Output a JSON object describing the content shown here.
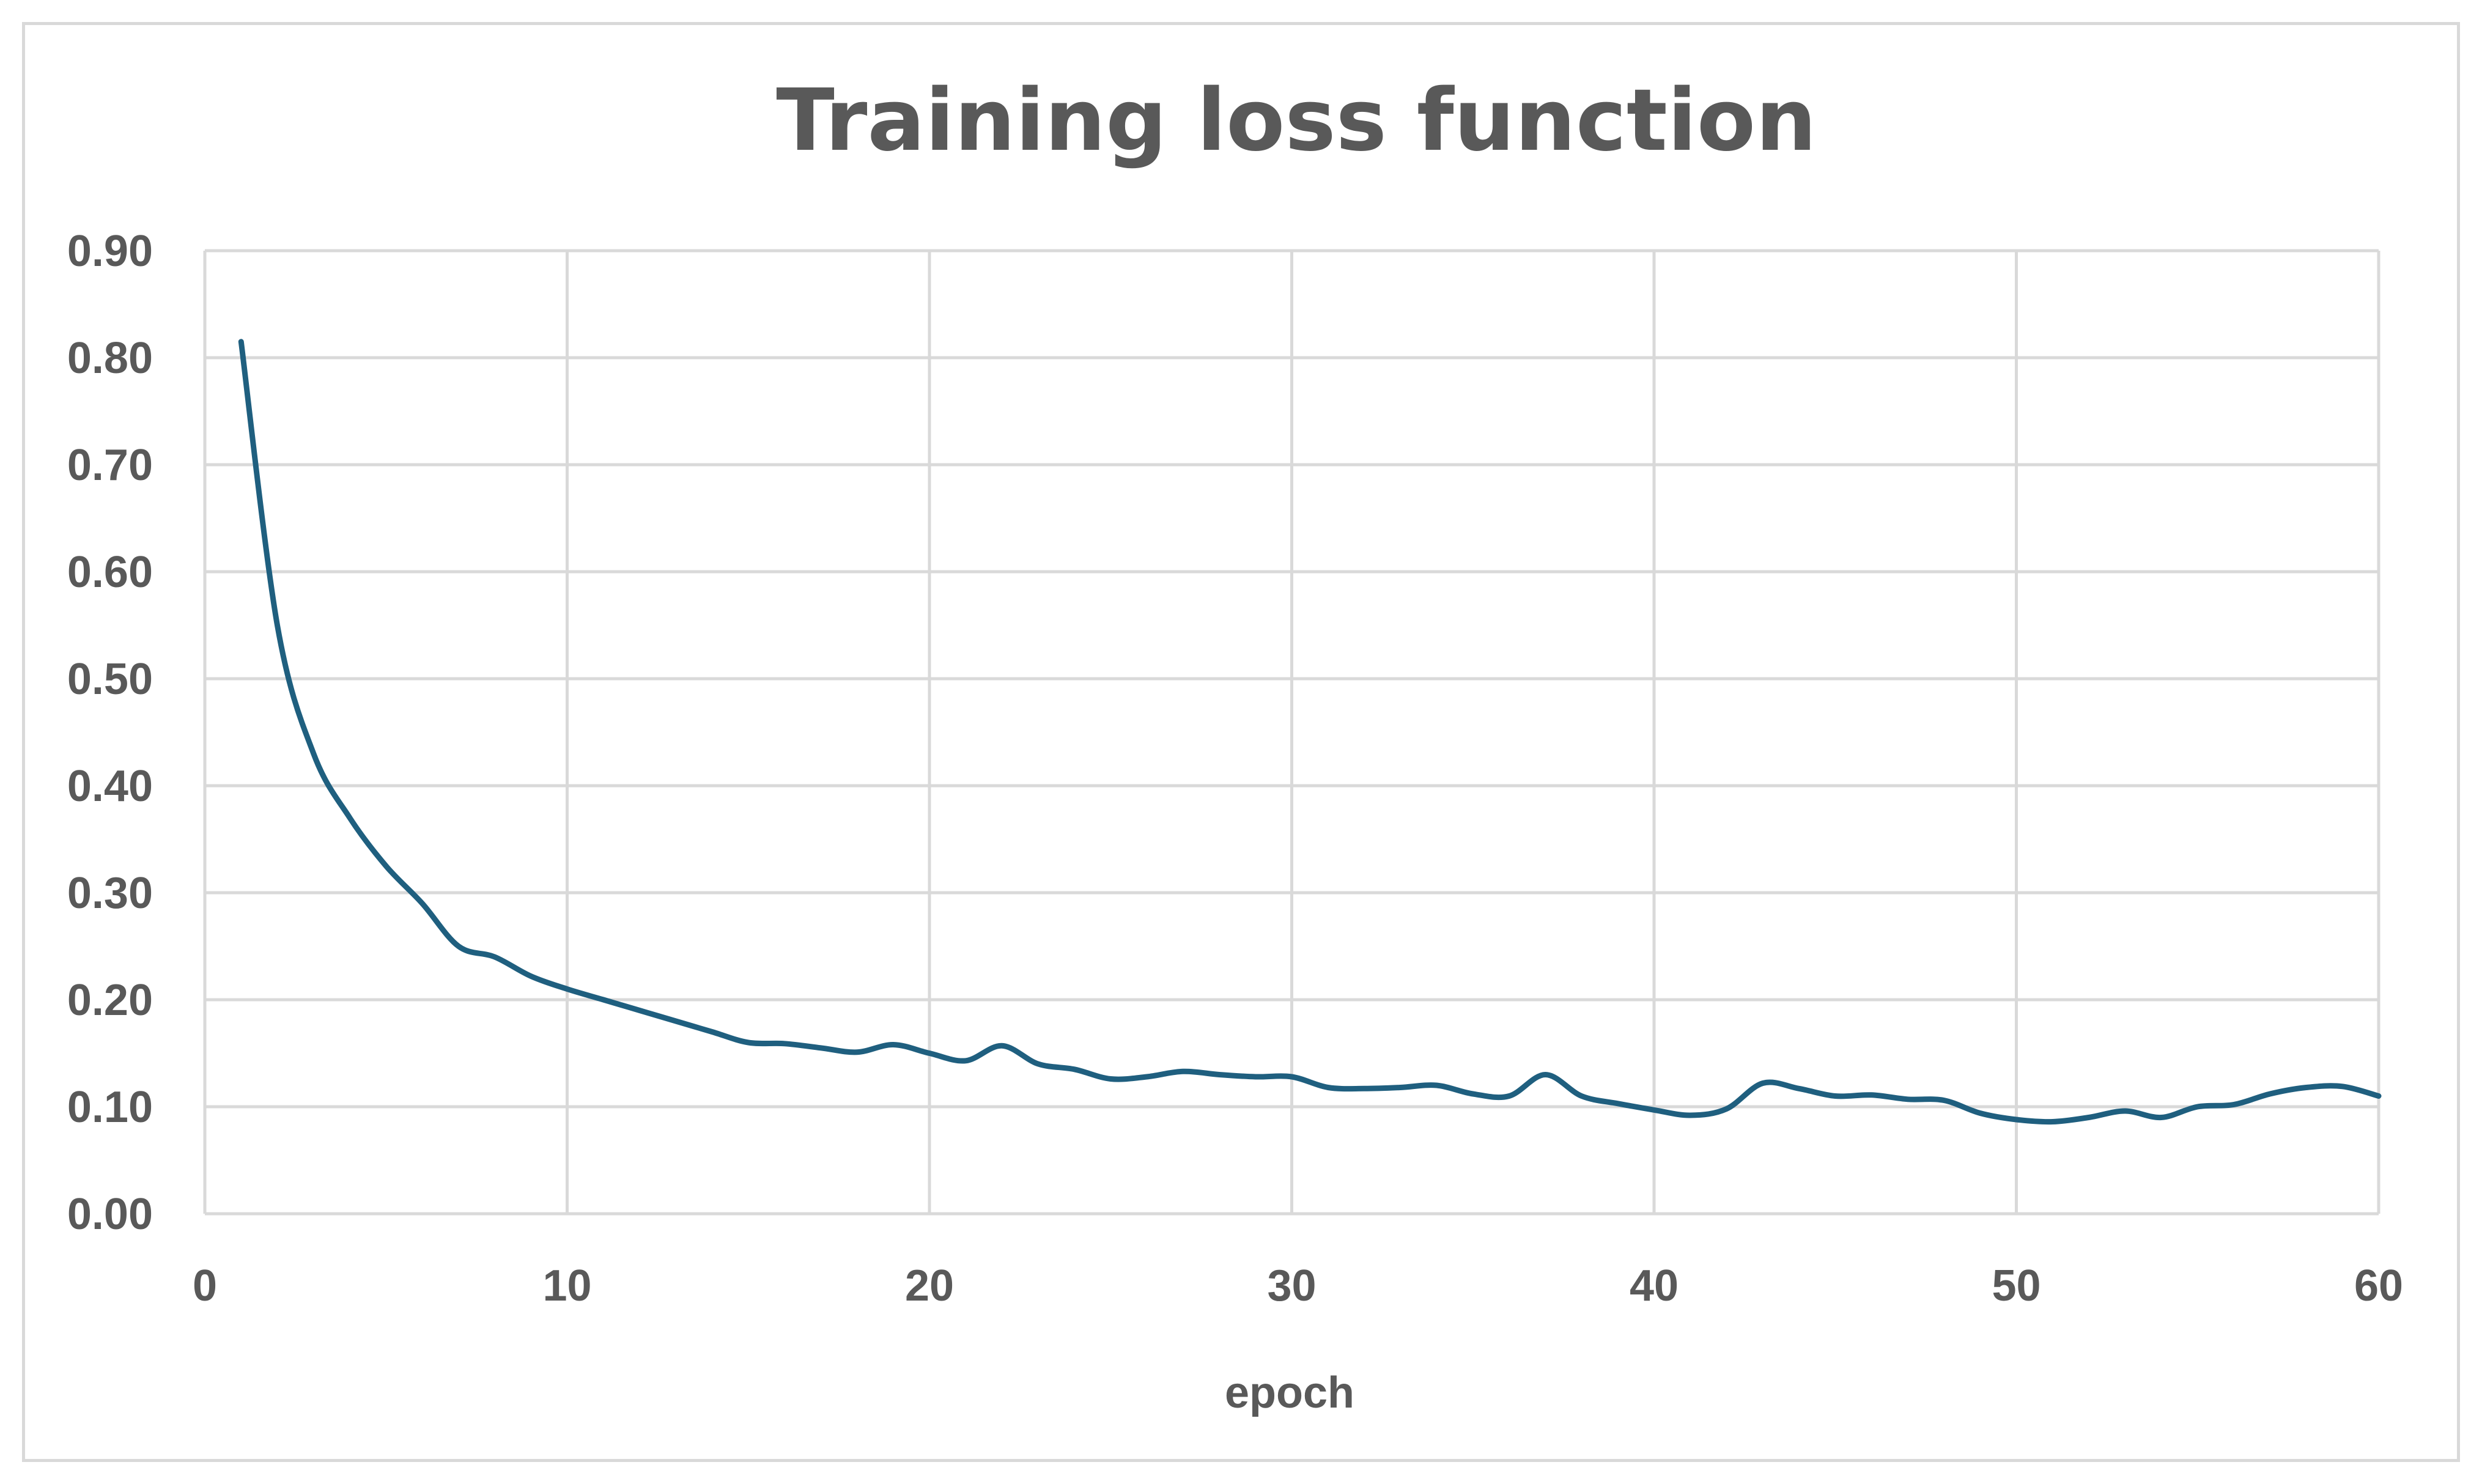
{
  "chart_data": {
    "type": "line",
    "title": "Training loss function",
    "xlabel": "epoch",
    "ylabel": "",
    "xlim": [
      0,
      60
    ],
    "ylim": [
      0,
      0.9
    ],
    "x_ticks": [
      "0",
      "10",
      "20",
      "30",
      "40",
      "50",
      "60"
    ],
    "y_ticks": [
      "0.00",
      "0.10",
      "0.20",
      "0.30",
      "0.40",
      "0.50",
      "0.60",
      "0.70",
      "0.80",
      "0.90"
    ],
    "grid": true,
    "legend": "none",
    "series": [
      {
        "color": "#1f5f7f",
        "x": [
          1,
          2,
          3,
          4,
          5,
          6,
          7,
          8,
          9,
          10,
          11,
          12,
          13,
          14,
          15,
          16,
          17,
          18,
          19,
          20,
          21,
          22,
          23,
          24,
          25,
          26,
          27,
          28,
          29,
          30,
          31,
          32,
          33,
          34,
          35,
          36,
          37,
          38,
          39,
          40,
          41,
          42,
          43,
          44,
          45,
          46,
          47,
          48,
          49,
          50,
          51,
          52,
          53,
          54,
          55,
          56,
          57,
          58,
          59,
          60
        ],
        "values": [
          0.815,
          0.55,
          0.43,
          0.37,
          0.325,
          0.29,
          0.25,
          0.24,
          0.222,
          0.21,
          0.2,
          0.19,
          0.18,
          0.17,
          0.16,
          0.159,
          0.155,
          0.151,
          0.158,
          0.15,
          0.143,
          0.157,
          0.14,
          0.135,
          0.126,
          0.128,
          0.133,
          0.13,
          0.128,
          0.128,
          0.118,
          0.117,
          0.118,
          0.12,
          0.112,
          0.11,
          0.13,
          0.11,
          0.103,
          0.097,
          0.092,
          0.098,
          0.122,
          0.117,
          0.11,
          0.111,
          0.107,
          0.106,
          0.094,
          0.088,
          0.086,
          0.09,
          0.096,
          0.09,
          0.1,
          0.102,
          0.112,
          0.118,
          0.119,
          0.11
        ]
      }
    ]
  }
}
